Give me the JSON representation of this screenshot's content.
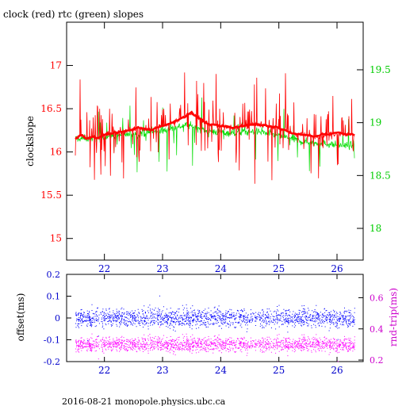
{
  "title": "clock (red) rtc (green) slopes",
  "footer": "2016-08-21 monopole.physics.ubc.ca",
  "colors": {
    "clock": "#ff0000",
    "rtc": "#00dd00",
    "offset": "#0000ff",
    "rndtrip": "#ff00ff",
    "axis_black": "#000000",
    "axis_left_ticks": "#ff0000",
    "axis_right_ticks_top": "#00cc00",
    "axis_left_ticks_bottom": "#0000cc",
    "axis_right_ticks_bottom": "#cc00cc"
  },
  "chart_data": [
    {
      "type": "line",
      "ylabel": "clockslope",
      "xlim": [
        21.35,
        26.45
      ],
      "ylim": [
        14.75,
        17.5
      ],
      "y2lim": [
        17.7,
        19.95
      ],
      "x_ticks": [
        22,
        23,
        24,
        25,
        26
      ],
      "y_ticks": [
        15,
        15.5,
        16,
        16.5,
        17
      ],
      "y2_ticks": [
        18,
        18.5,
        19,
        19.5
      ],
      "y_tick_labels": [
        "15",
        "15.5",
        "16",
        "16.5",
        "17"
      ],
      "y2_tick_labels": [
        "18",
        "18.5",
        "19",
        "19.5"
      ],
      "x_tick_labels": [
        "22",
        "23",
        "24",
        "25",
        "26"
      ],
      "series": [
        {
          "name": "clock",
          "x": [
            21.5,
            21.6,
            21.7,
            21.8,
            21.9,
            22.0,
            22.2,
            22.4,
            22.6,
            22.8,
            23.0,
            23.2,
            23.4,
            23.5,
            23.6,
            23.8,
            24.0,
            24.2,
            24.4,
            24.6,
            24.8,
            25.0,
            25.2,
            25.4,
            25.6,
            25.8,
            26.0,
            26.2,
            26.3
          ],
          "values": [
            16.15,
            16.2,
            16.15,
            16.18,
            16.16,
            16.2,
            16.22,
            16.25,
            16.28,
            16.26,
            16.3,
            16.35,
            16.42,
            16.45,
            16.4,
            16.32,
            16.3,
            16.28,
            16.3,
            16.32,
            16.3,
            16.28,
            16.22,
            16.2,
            16.18,
            16.2,
            16.22,
            16.2,
            16.2
          ]
        },
        {
          "name": "rtc",
          "x": [
            21.5,
            21.8,
            22.2,
            22.6,
            23.0,
            23.4,
            23.8,
            24.2,
            24.6,
            25.0,
            25.4,
            25.8,
            26.2,
            26.3
          ],
          "values": [
            18.85,
            18.85,
            18.88,
            18.9,
            18.92,
            18.98,
            18.92,
            18.9,
            18.92,
            18.88,
            18.82,
            18.8,
            18.78,
            18.8
          ]
        }
      ]
    },
    {
      "type": "scatter",
      "ylabel": "offset(ms)",
      "y2label": "rnd-trip(ms)",
      "xlim": [
        21.35,
        26.45
      ],
      "ylim": [
        -0.2,
        0.2
      ],
      "y2lim": [
        0.19,
        0.75
      ],
      "x_ticks": [
        22,
        23,
        24,
        25,
        26
      ],
      "x_tick_labels": [
        "22",
        "23",
        "24",
        "25",
        "26"
      ],
      "y_ticks": [
        -0.2,
        -0.1,
        0,
        0.1,
        0.2
      ],
      "y_tick_labels": [
        "-0.2",
        "-0.1",
        "0",
        "0.1",
        "0.2"
      ],
      "y2_ticks": [
        0.2,
        0.4,
        0.6
      ],
      "y2_tick_labels": [
        "0.2",
        "0.4",
        "0.6"
      ],
      "series": [
        {
          "name": "offset",
          "center": 0.0,
          "spread": 0.045,
          "x_range": [
            21.5,
            26.3
          ]
        },
        {
          "name": "rndtrip",
          "center": 0.3,
          "spread": 0.05,
          "x_range": [
            21.5,
            26.3
          ]
        }
      ]
    }
  ]
}
